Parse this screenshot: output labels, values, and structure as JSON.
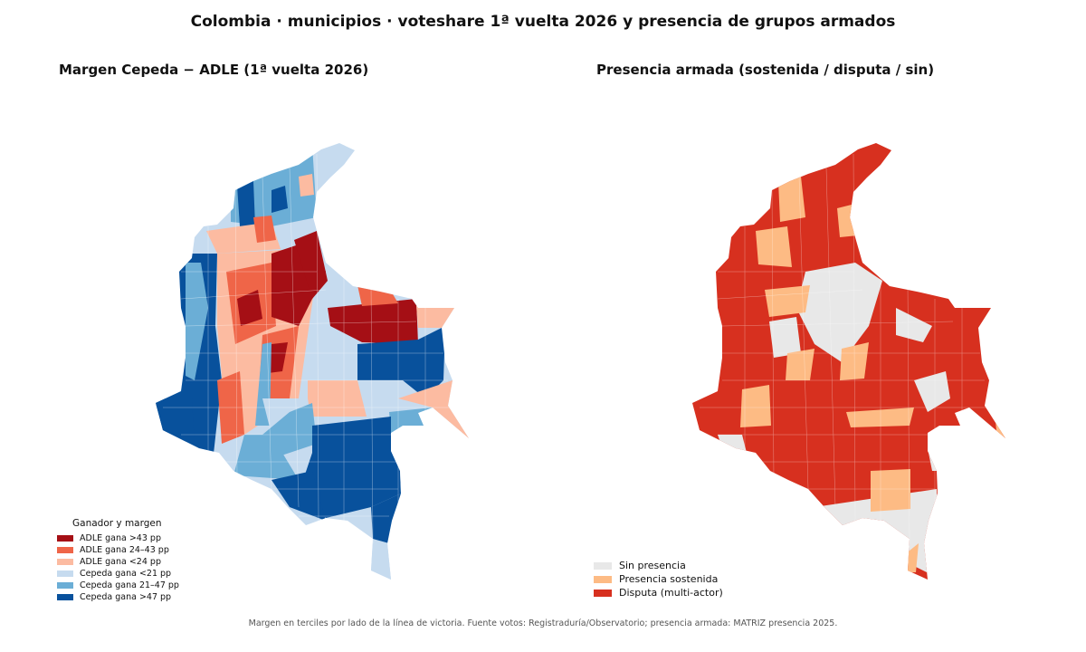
{
  "title": "Colombia · municipios · voteshare 1ª vuelta 2026 y presencia de grupos armados",
  "left_panel": {
    "title": "Margen Cepeda − ADLE  (1ª vuelta 2026)",
    "legend_title": "Ganador y margen",
    "legend": [
      {
        "label": "ADLE gana >43 pp",
        "color": "#a50f15"
      },
      {
        "label": "ADLE gana 24–43 pp",
        "color": "#ef6548"
      },
      {
        "label": "ADLE gana <24 pp",
        "color": "#fcbba1"
      },
      {
        "label": "Cepeda gana <21 pp",
        "color": "#c6dbef"
      },
      {
        "label": "Cepeda gana 21–47 pp",
        "color": "#6baed6"
      },
      {
        "label": "Cepeda gana >47 pp",
        "color": "#08519c"
      }
    ]
  },
  "right_panel": {
    "title": "Presencia armada (sostenida / disputa / sin)",
    "legend": [
      {
        "label": "Sin presencia",
        "color": "#e8e8e8"
      },
      {
        "label": "Presencia sostenida",
        "color": "#fdbb84"
      },
      {
        "label": "Disputa (multi-actor)",
        "color": "#d7301f"
      }
    ]
  },
  "footer": "Margen en terciles por lado de la línea de victoria. Fuente votos: Registraduría/Observatorio; presencia armada: MATRIZ presencia 2025."
}
